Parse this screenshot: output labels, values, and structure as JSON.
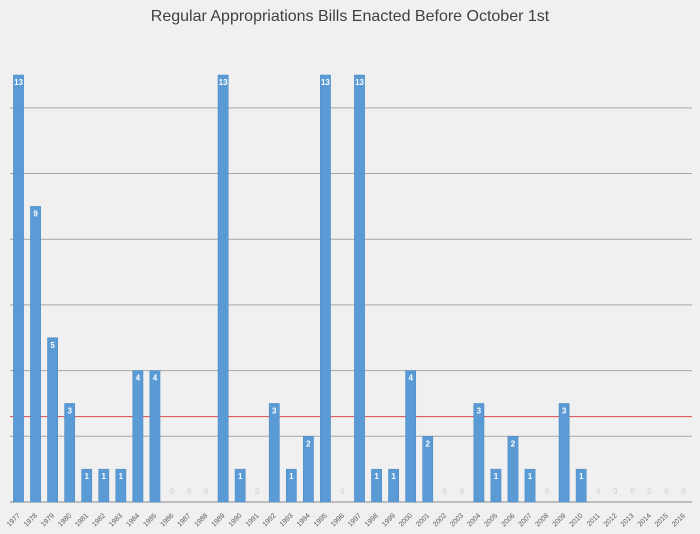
{
  "chart_data": {
    "type": "bar",
    "title": "Regular Appropriations Bills Enacted Before October 1st",
    "categories": [
      "1977",
      "1978",
      "1979",
      "1980",
      "1981",
      "1982",
      "1983",
      "1984",
      "1985",
      "1986",
      "1987",
      "1988",
      "1989",
      "1990",
      "1991",
      "1992",
      "1993",
      "1994",
      "1995",
      "1996",
      "1997",
      "1998",
      "1999",
      "2000",
      "2001",
      "2002",
      "2003",
      "2004",
      "2005",
      "2006",
      "2007",
      "2008",
      "2009",
      "2010",
      "2011",
      "2012",
      "2013",
      "2014",
      "2015",
      "2016"
    ],
    "values": [
      13,
      9,
      5,
      3,
      1,
      1,
      1,
      4,
      4,
      0,
      0,
      0,
      13,
      1,
      0,
      3,
      1,
      2,
      13,
      0,
      13,
      1,
      1,
      4,
      2,
      0,
      0,
      3,
      1,
      2,
      1,
      0,
      3,
      1,
      0,
      0,
      0,
      0,
      0,
      0
    ],
    "ylim": [
      0,
      13
    ],
    "reference_line": {
      "value": 2.6,
      "color": "#e04848"
    },
    "grid": true,
    "legend": "none",
    "colors": {
      "bar": "#5b9bd5",
      "grid": "#a6a6a6",
      "background": "#f0f0f0"
    }
  }
}
